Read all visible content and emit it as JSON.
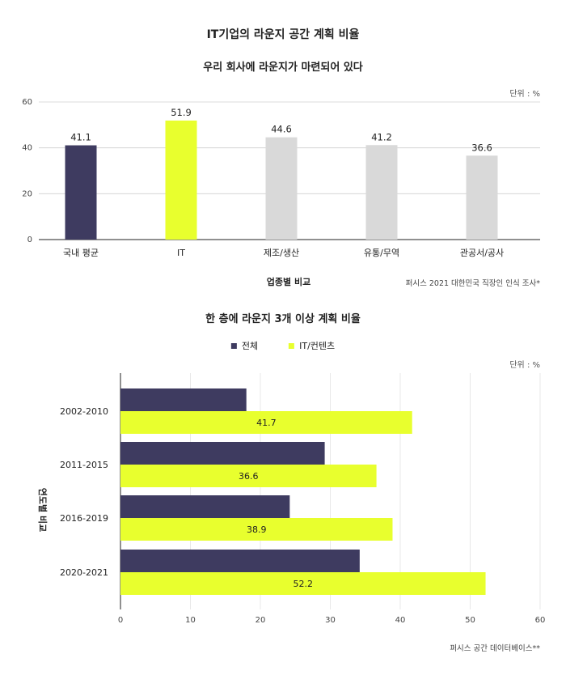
{
  "page": {
    "title": "IT기업의 라운지 공간 계획 비율"
  },
  "colors": {
    "navy": "#3e3b60",
    "lime": "#e8ff2e",
    "gray": "#d9d9d9",
    "grid": "#cfcfcf",
    "axis": "#222222"
  },
  "chart_data": [
    {
      "type": "bar",
      "title": "우리 회사에 라운지가 마련되어 있다",
      "unit_label": "단위 : %",
      "xlabel": "업종별 비교",
      "ylabel": "",
      "source": "퍼시스 2021 대한민국 직장인 인식 조사*",
      "categories": [
        "국내 평균",
        "IT",
        "제조/생산",
        "유통/무역",
        "관공서/공사"
      ],
      "values": [
        41.1,
        51.9,
        44.6,
        41.2,
        36.6
      ],
      "value_labels": [
        "41.1",
        "51.9",
        "44.6",
        "41.2",
        "36.6"
      ],
      "bar_colors": [
        "#3e3b60",
        "#e8ff2e",
        "#d9d9d9",
        "#d9d9d9",
        "#d9d9d9"
      ],
      "yticks": [
        0,
        20,
        40,
        60
      ],
      "ylim": [
        0,
        60
      ],
      "grid": true
    },
    {
      "type": "bar",
      "orientation": "horizontal",
      "title": "한 층에 라운지 3개 이상 계획 비율",
      "unit_label": "단위 : %",
      "ylabel": "연도별 비교",
      "xlabel": "",
      "source": "퍼시스 공간 데이터베이스**",
      "legend_position": "top-center",
      "categories": [
        "2002-2010",
        "2011-2015",
        "2016-2019",
        "2020-2021"
      ],
      "series": [
        {
          "name": "전체",
          "color": "#3e3b60",
          "values": [
            18,
            29.2,
            24.2,
            34.2
          ],
          "labels": [
            "",
            "",
            "",
            ""
          ]
        },
        {
          "name": "IT/컨텐츠",
          "color": "#e8ff2e",
          "values": [
            41.7,
            36.6,
            38.9,
            52.2
          ],
          "labels": [
            "41.7",
            "36.6",
            "38.9",
            "52.2"
          ]
        }
      ],
      "xticks": [
        0,
        10,
        20,
        30,
        40,
        50,
        60
      ],
      "xlim": [
        0,
        60
      ],
      "grid": true
    }
  ]
}
